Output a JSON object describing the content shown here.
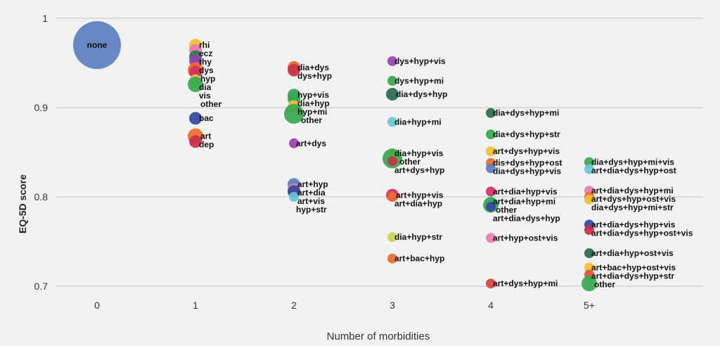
{
  "chart_data": {
    "type": "scatter",
    "title": "",
    "xlabel": "Number of morbidities",
    "ylabel": "EQ-5D  score",
    "x_categories": [
      "0",
      "1",
      "2",
      "3",
      "4",
      "5+"
    ],
    "ylim": [
      0.68,
      1.01
    ],
    "yticks": [
      0.7,
      0.8,
      0.9,
      1
    ],
    "ytick_labels": [
      "0.7",
      "0.8",
      "0.9",
      "1"
    ],
    "grid": true,
    "points": [
      {
        "x": 0,
        "y": 0.97,
        "label": "none",
        "color": "#5b7fc1",
        "size": 10
      },
      {
        "x": 1,
        "y": 0.97,
        "label": "rhi",
        "color": "#f2c12e",
        "size": 2
      },
      {
        "x": 1,
        "y": 0.964,
        "label": "ecz",
        "color": "#e879b0",
        "size": 2
      },
      {
        "x": 1,
        "y": 0.957,
        "label": "thy",
        "color": "#2a7a4e",
        "size": 2
      },
      {
        "x": 1,
        "y": 0.952,
        "label": "dys",
        "color": "#9b3fb0",
        "size": 2
      },
      {
        "x": 1,
        "y": 0.942,
        "label": "hyp",
        "color": "#ef6b2b",
        "size": 3
      },
      {
        "x": 1,
        "y": 0.94,
        "label": "dia",
        "color": "#d6305e",
        "size": 2
      },
      {
        "x": 1,
        "y": 0.93,
        "label": "vis",
        "color": "#cdd34a",
        "size": 2
      },
      {
        "x": 1,
        "y": 0.926,
        "label": "other",
        "color": "#35a84f",
        "size": 3
      },
      {
        "x": 1,
        "y": 0.888,
        "label": "bac",
        "color": "#3346a3",
        "size": 2
      },
      {
        "x": 1,
        "y": 0.868,
        "label": "art",
        "color": "#ef6b2b",
        "size": 3
      },
      {
        "x": 1,
        "y": 0.862,
        "label": "dep",
        "color": "#c8304a",
        "size": 2
      },
      {
        "x": 2,
        "y": 0.945,
        "label": "dia+dys",
        "color": "#ef6b2b",
        "size": 2
      },
      {
        "x": 2,
        "y": 0.942,
        "label": "dys+hyp",
        "color": "#c8304a",
        "size": 2
      },
      {
        "x": 2,
        "y": 0.914,
        "label": "hyp+vis",
        "color": "#35a84f",
        "size": 2
      },
      {
        "x": 2,
        "y": 0.91,
        "label": "dia+hyp",
        "color": "#35a84f",
        "size": 2
      },
      {
        "x": 2,
        "y": 0.901,
        "label": "hyp+mi",
        "color": "#f2c12e",
        "size": 2
      },
      {
        "x": 2,
        "y": 0.893,
        "label": "other",
        "color": "#35a84f",
        "size": 4
      },
      {
        "x": 2,
        "y": 0.86,
        "label": "art+dys",
        "color": "#9b3fb0",
        "size": 1
      },
      {
        "x": 2,
        "y": 0.814,
        "label": "art+hyp",
        "color": "#5b7fc1",
        "size": 2
      },
      {
        "x": 2,
        "y": 0.808,
        "label": "art+dia",
        "color": "#e879b0",
        "size": 2
      },
      {
        "x": 2,
        "y": 0.806,
        "label": "art+vis",
        "color": "#3346a3",
        "size": 2
      },
      {
        "x": 2,
        "y": 0.8,
        "label": "hyp+str",
        "color": "#67c8d6",
        "size": 1
      },
      {
        "x": 3,
        "y": 0.952,
        "label": "dys+hyp+vis",
        "color": "#9b3fb0",
        "size": 1
      },
      {
        "x": 3,
        "y": 0.93,
        "label": "dys+hyp+mi",
        "color": "#35a84f",
        "size": 1
      },
      {
        "x": 3,
        "y": 0.915,
        "label": "dia+dys+hyp",
        "color": "#2a6b4e",
        "size": 2
      },
      {
        "x": 3,
        "y": 0.884,
        "label": "dia+hyp+mi",
        "color": "#67c8d6",
        "size": 1
      },
      {
        "x": 3,
        "y": 0.849,
        "label": "dia+hyp+vis",
        "color": "#f2c12e",
        "size": 1
      },
      {
        "x": 3,
        "y": 0.843,
        "label": "other",
        "color": "#35a84f",
        "size": 4
      },
      {
        "x": 3,
        "y": 0.84,
        "label": "art+dys+hyp",
        "color": "#c8304a",
        "size": 1
      },
      {
        "x": 3,
        "y": 0.802,
        "label": "art+hyp+vis",
        "color": "#d6305e",
        "size": 2
      },
      {
        "x": 3,
        "y": 0.8,
        "label": "art+dia+hyp",
        "color": "#ef6b2b",
        "size": 1
      },
      {
        "x": 3,
        "y": 0.755,
        "label": "dia+hyp+str",
        "color": "#cdd34a",
        "size": 1
      },
      {
        "x": 3,
        "y": 0.731,
        "label": "art+bac+hyp",
        "color": "#ef6b2b",
        "size": 1
      },
      {
        "x": 4,
        "y": 0.894,
        "label": "dia+dys+hyp+mi",
        "color": "#2a6b4e",
        "size": 1
      },
      {
        "x": 4,
        "y": 0.87,
        "label": "dia+dys+hyp+str",
        "color": "#35a84f",
        "size": 1
      },
      {
        "x": 4,
        "y": 0.851,
        "label": "art+dys+hyp+vis",
        "color": "#f2c12e",
        "size": 1
      },
      {
        "x": 4,
        "y": 0.838,
        "label": "dis+dys+hyp+ost",
        "color": "#ef6b2b",
        "size": 1
      },
      {
        "x": 4,
        "y": 0.832,
        "label": "dia+dys+hyp+vis",
        "color": "#5b7fc1",
        "size": 1
      },
      {
        "x": 4,
        "y": 0.806,
        "label": "art+dia+hyp+vis",
        "color": "#d6305e",
        "size": 1
      },
      {
        "x": 4,
        "y": 0.795,
        "label": "art+dia+hyp+mi",
        "color": "#67c8d6",
        "size": 1
      },
      {
        "x": 4,
        "y": 0.791,
        "label": "other",
        "color": "#35a84f",
        "size": 3
      },
      {
        "x": 4,
        "y": 0.789,
        "label": "art+dia+dys+hyp",
        "color": "#3346a3",
        "size": 1
      },
      {
        "x": 4,
        "y": 0.754,
        "label": "art+hyp+ost+vis",
        "color": "#e879b0",
        "size": 1
      },
      {
        "x": 4,
        "y": 0.703,
        "label": "art+dys+hyp+mi",
        "color": "#d84040",
        "size": 1
      },
      {
        "x": 5,
        "y": 0.839,
        "label": "dia+dys+hyp+mi+vis",
        "color": "#35a84f",
        "size": 1
      },
      {
        "x": 5,
        "y": 0.831,
        "label": "art+dia+dys+hyp+ost",
        "color": "#67c8d6",
        "size": 1
      },
      {
        "x": 5,
        "y": 0.807,
        "label": "art+dia+dys+hyp+mi",
        "color": "#e879b0",
        "size": 1
      },
      {
        "x": 5,
        "y": 0.8,
        "label": "art+dys+hyp+ost+vis",
        "color": "#ef6b2b",
        "size": 1
      },
      {
        "x": 5,
        "y": 0.797,
        "label": "dia+dys+hyp+mi+str",
        "color": "#f2c12e",
        "size": 1
      },
      {
        "x": 5,
        "y": 0.769,
        "label": "art+dia+dys+hyp+vis",
        "color": "#3346a3",
        "size": 1
      },
      {
        "x": 5,
        "y": 0.763,
        "label": "art+dia+dys+hyp+ost+vis",
        "color": "#c8304a",
        "size": 1
      },
      {
        "x": 5,
        "y": 0.737,
        "label": "art+dia+hyp+ost+vis",
        "color": "#2a6b4e",
        "size": 1
      },
      {
        "x": 5,
        "y": 0.721,
        "label": "art+bac+hyp+ost+vis",
        "color": "#f2c12e",
        "size": 1
      },
      {
        "x": 5,
        "y": 0.713,
        "label": "art+dia+dys+hyp+str",
        "color": "#e0503a",
        "size": 1
      },
      {
        "x": 5,
        "y": 0.703,
        "label": "other",
        "color": "#35a84f",
        "size": 3
      }
    ]
  }
}
